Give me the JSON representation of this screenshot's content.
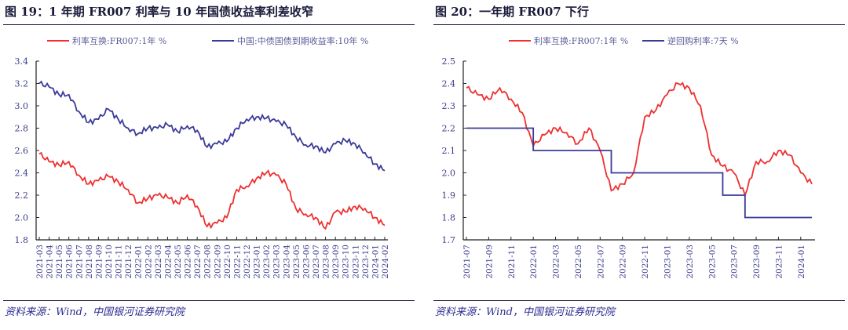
{
  "chart_data": [
    {
      "type": "line",
      "title": "图 19：1 年期 FR007 利率与 10 年国债收益率利差收窄",
      "source": "资料来源：Wind，中国银河证券研究院",
      "ylim": [
        1.8,
        3.4
      ],
      "yticks": [
        1.8,
        2.0,
        2.2,
        2.4,
        2.6,
        2.8,
        3.0,
        3.2,
        3.4
      ],
      "legend": "top",
      "x": [
        "2021-03",
        "2021-04",
        "2021-05",
        "2021-06",
        "2021-07",
        "2021-08",
        "2021-09",
        "2021-10",
        "2021-11",
        "2021-12",
        "2022-01",
        "2022-02",
        "2022-03",
        "2022-04",
        "2022-05",
        "2022-06",
        "2022-07",
        "2022-08",
        "2022-09",
        "2022-10",
        "2022-11",
        "2022-12",
        "2023-01",
        "2023-02",
        "2023-03",
        "2023-04",
        "2023-05",
        "2023-06",
        "2023-07",
        "2023-08",
        "2023-09",
        "2023-10",
        "2023-11",
        "2023-12",
        "2024-01",
        "2024-02"
      ],
      "series": [
        {
          "name": "利率互换:FR007:1年 %",
          "color": "#ee3030",
          "values": [
            2.57,
            2.5,
            2.47,
            2.5,
            2.38,
            2.3,
            2.33,
            2.37,
            2.32,
            2.25,
            2.13,
            2.17,
            2.2,
            2.18,
            2.13,
            2.2,
            2.1,
            1.92,
            1.95,
            2.0,
            2.25,
            2.28,
            2.35,
            2.4,
            2.38,
            2.3,
            2.08,
            2.03,
            2.0,
            1.9,
            2.05,
            2.05,
            2.1,
            2.08,
            2.0,
            1.93
          ]
        },
        {
          "name": "中国:中债国债到期收益率:10年 %",
          "color": "#3a3a9a",
          "values": [
            3.2,
            3.17,
            3.1,
            3.1,
            2.95,
            2.85,
            2.88,
            2.97,
            2.88,
            2.8,
            2.75,
            2.8,
            2.8,
            2.83,
            2.77,
            2.82,
            2.78,
            2.63,
            2.66,
            2.68,
            2.8,
            2.88,
            2.9,
            2.89,
            2.86,
            2.83,
            2.72,
            2.65,
            2.64,
            2.58,
            2.66,
            2.69,
            2.66,
            2.58,
            2.48,
            2.42
          ]
        }
      ]
    },
    {
      "type": "line",
      "title": "图 20：一年期 FR007 下行",
      "source": "资料来源：Wind，中国银河证券研究院",
      "ylim": [
        1.7,
        2.5
      ],
      "yticks": [
        1.7,
        1.8,
        1.9,
        2.0,
        2.1,
        2.2,
        2.3,
        2.4,
        2.5
      ],
      "legend": "top",
      "xtick_labels": [
        "2021-07",
        "2021-09",
        "2021-11",
        "2022-01",
        "2022-03",
        "2022-05",
        "2022-07",
        "2022-09",
        "2022-11",
        "2023-01",
        "2023-03",
        "2023-05",
        "2023-07",
        "2023-09",
        "2023-11",
        "2024-01"
      ],
      "x": [
        "2021-07",
        "2021-08",
        "2021-09",
        "2021-10",
        "2021-11",
        "2021-12",
        "2022-01",
        "2022-02",
        "2022-03",
        "2022-04",
        "2022-05",
        "2022-06",
        "2022-07",
        "2022-08",
        "2022-09",
        "2022-10",
        "2022-11",
        "2022-12",
        "2023-01",
        "2023-02",
        "2023-03",
        "2023-04",
        "2023-05",
        "2023-06",
        "2023-07",
        "2023-08",
        "2023-09",
        "2023-10",
        "2023-11",
        "2023-12",
        "2024-01",
        "2024-02"
      ],
      "series": [
        {
          "name": "利率互换:FR007:1年 %",
          "color": "#ee3030",
          "values": [
            2.38,
            2.35,
            2.33,
            2.38,
            2.33,
            2.27,
            2.12,
            2.17,
            2.2,
            2.18,
            2.13,
            2.2,
            2.1,
            1.92,
            1.95,
            2.0,
            2.25,
            2.28,
            2.35,
            2.4,
            2.38,
            2.3,
            2.08,
            2.03,
            2.0,
            1.9,
            2.05,
            2.05,
            2.1,
            2.08,
            2.0,
            1.95
          ]
        },
        {
          "name": "逆回购利率:7天 %",
          "color": "#3a3a9a",
          "step": true,
          "values": [
            2.2,
            2.2,
            2.2,
            2.2,
            2.2,
            2.2,
            2.1,
            2.1,
            2.1,
            2.1,
            2.1,
            2.1,
            2.1,
            2.0,
            2.0,
            2.0,
            2.0,
            2.0,
            2.0,
            2.0,
            2.0,
            2.0,
            2.0,
            1.9,
            1.9,
            1.8,
            1.8,
            1.8,
            1.8,
            1.8,
            1.8,
            1.8
          ]
        }
      ]
    }
  ]
}
